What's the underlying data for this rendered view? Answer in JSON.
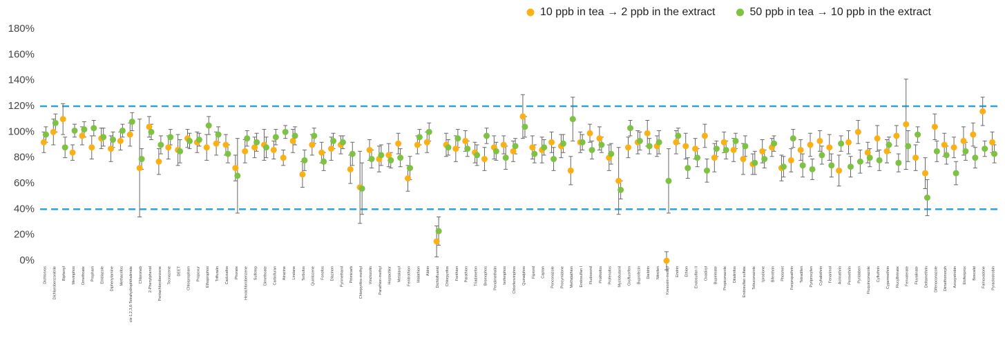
{
  "chart_data": {
    "type": "dot-error",
    "categories": [
      "Dichlorvos",
      "Dichlorobenzonitrile",
      "Biphenyl",
      "Mevinphos",
      "Omethoate",
      "Propham",
      "Etridiazole",
      "Diphenylamine",
      "Methacrifos",
      "cis-1,2,3,6-Tetrahydrophthalimide",
      "Chloroneb",
      "2-Phenylphenol",
      "Pentachlorobenzene",
      "Tecnazene",
      "DEET",
      "Chlorpropham",
      "Propoxur",
      "Ethoprophos",
      "Trifluralin",
      "Cadusafos",
      "Phorate",
      "Hexachlorobenzene",
      "Sulfotep",
      "Dimethoate",
      "Carbofuran",
      "Atrazine",
      "Lindane",
      "Terbufos",
      "Quintozene",
      "Fonofos",
      "Diazinon",
      "Pyrimethanil",
      "Pirimicarb",
      "Chlorpyrifos-methyl",
      "Vinclozolin",
      "Parathion-methyl",
      "Heptachlor",
      "Metalaxyl",
      "Fenitrothion",
      "Malathion",
      "Aldrin",
      "Dichlofluanid",
      "Chlorpyrifos",
      "Fenthion",
      "Parathion",
      "Triadimefon",
      "Bromophos",
      "Pendimethalin",
      "Isofenphos",
      "Chlorfenvinphos",
      "Quinalphos",
      "Fipronil",
      "Captan",
      "Penconazole",
      "Procymidone",
      "Methidathion",
      "Endosulfan I",
      "Fludioxonil",
      "Prothiofos",
      "Profenofos",
      "Myclobutanil",
      "Oxyfluorfen",
      "Buprofezin",
      "Dieldrin",
      "Nitrofen",
      "Kresoxim-methyl",
      "Endrin",
      "Ethion",
      "Endosulfan II",
      "Oxadixyl",
      "Bupirimate",
      "Propiconazole",
      "Ditalimfos",
      "Endosulfan sulfate",
      "Tebuconazole",
      "Iprodione",
      "Bifenthrin",
      "Phosmet",
      "Fenpropathrin",
      "Tetradifen",
      "Pyriproxyfen",
      "Cyhalothrin",
      "Fenarimol",
      "Acrinathrin",
      "Permethrin",
      "Pyridaben",
      "Fluquinconazole",
      "Cyfluthrin",
      "Cypermethrin",
      "Flucythrinate",
      "Fenvalerate",
      "Fluvalinate",
      "Deltamethrin",
      "Difenoconazole",
      "Dimethomorph",
      "Azoxystrobin",
      "Etofenprox",
      "Boscalid",
      "Famoxadone",
      "Pyraclostrobin"
    ],
    "series": [
      {
        "name": "10 ppb in tea → 2 ppb in the extract",
        "color": "#fbb116",
        "values": [
          92,
          100,
          110,
          84,
          97,
          88,
          95,
          87,
          93,
          98,
          72,
          104,
          77,
          88,
          86,
          95,
          92,
          88,
          91,
          90,
          72,
          85,
          88,
          90,
          86,
          80,
          93,
          67,
          90,
          84,
          87,
          90,
          71,
          57,
          86,
          79,
          82,
          91,
          64,
          90,
          92,
          15,
          90,
          87,
          93,
          84,
          79,
          88,
          90,
          85,
          112,
          88,
          86,
          92,
          89,
          70,
          92,
          99,
          95,
          80,
          62,
          88,
          92,
          99,
          89,
          0,
          92,
          89,
          87,
          97,
          80,
          92,
          86,
          79,
          75,
          85,
          88,
          72,
          78,
          86,
          90,
          93,
          88,
          70,
          92,
          100,
          84,
          95,
          85,
          97,
          106,
          80,
          68,
          104,
          90,
          88,
          93,
          98,
          116,
          92
        ],
        "errors": [
          8,
          10,
          12,
          6,
          7,
          9,
          8,
          10,
          7,
          9,
          38,
          8,
          10,
          9,
          12,
          7,
          8,
          10,
          9,
          8,
          10,
          9,
          8,
          12,
          7,
          6,
          9,
          10,
          8,
          8,
          9,
          7,
          11,
          28,
          8,
          10,
          9,
          8,
          10,
          7,
          8,
          12,
          9,
          10,
          8,
          8,
          9,
          9,
          7,
          8,
          17,
          9,
          10,
          8,
          9,
          11,
          8,
          7,
          9,
          10,
          26,
          8,
          9,
          10,
          8,
          7,
          9,
          10,
          8,
          9,
          11,
          8,
          9,
          12,
          8,
          9,
          7,
          10,
          9,
          8,
          9,
          8,
          10,
          12,
          9,
          9,
          8,
          10,
          9,
          8,
          35,
          10,
          12,
          10,
          9,
          8,
          11,
          9,
          11,
          8
        ]
      },
      {
        "name": "50 ppb in tea → 10 ppb in the extract",
        "color": "#7dc243",
        "values": [
          98,
          107,
          88,
          101,
          102,
          103,
          96,
          94,
          101,
          108,
          79,
          100,
          90,
          96,
          85,
          93,
          94,
          105,
          98,
          83,
          66,
          95,
          92,
          88,
          96,
          100,
          97,
          78,
          97,
          77,
          93,
          92,
          83,
          56,
          79,
          82,
          78,
          80,
          72,
          96,
          100,
          23,
          88,
          95,
          87,
          82,
          97,
          85,
          80,
          89,
          104,
          83,
          88,
          79,
          91,
          110,
          92,
          86,
          90,
          83,
          55,
          103,
          93,
          89,
          92,
          62,
          97,
          72,
          80,
          70,
          87,
          86,
          93,
          89,
          76,
          79,
          91,
          73,
          95,
          74,
          71,
          82,
          74,
          91,
          73,
          77,
          80,
          78,
          90,
          76,
          89,
          98,
          49,
          85,
          82,
          68,
          85,
          80,
          87,
          83
        ],
        "errors": [
          6,
          7,
          8,
          5,
          6,
          6,
          7,
          6,
          5,
          7,
          8,
          6,
          7,
          6,
          9,
          6,
          5,
          7,
          6,
          7,
          29,
          6,
          7,
          8,
          6,
          5,
          7,
          8,
          6,
          7,
          6,
          5,
          9,
          20,
          7,
          8,
          6,
          7,
          9,
          6,
          7,
          11,
          6,
          7,
          6,
          8,
          6,
          7,
          9,
          6,
          8,
          7,
          6,
          9,
          7,
          17,
          6,
          7,
          6,
          8,
          7,
          6,
          7,
          6,
          9,
          25,
          6,
          8,
          7,
          9,
          6,
          7,
          6,
          8,
          9,
          7,
          6,
          8,
          7,
          9,
          8,
          7,
          9,
          6,
          8,
          9,
          7,
          8,
          6,
          7,
          12,
          6,
          14,
          8,
          7,
          9,
          7,
          8,
          6,
          7
        ]
      }
    ],
    "ylim": [
      0,
      180
    ],
    "yticks": [
      {
        "value": 0,
        "label": "0%"
      },
      {
        "value": 20,
        "label": "20%"
      },
      {
        "value": 40,
        "label": "40%"
      },
      {
        "value": 60,
        "label": "60%"
      },
      {
        "value": 80,
        "label": "80%"
      },
      {
        "value": 100,
        "label": "100%"
      },
      {
        "value": 120,
        "label": "120%"
      },
      {
        "value": 140,
        "label": "140%"
      },
      {
        "value": 160,
        "label": "160%"
      },
      {
        "value": 180,
        "label": "180%"
      }
    ],
    "reference_lines": [
      40,
      120
    ],
    "reference_line_color": "#2ba3d9",
    "error_bar_color": "#666666",
    "legend": "top-right",
    "grid": false
  }
}
